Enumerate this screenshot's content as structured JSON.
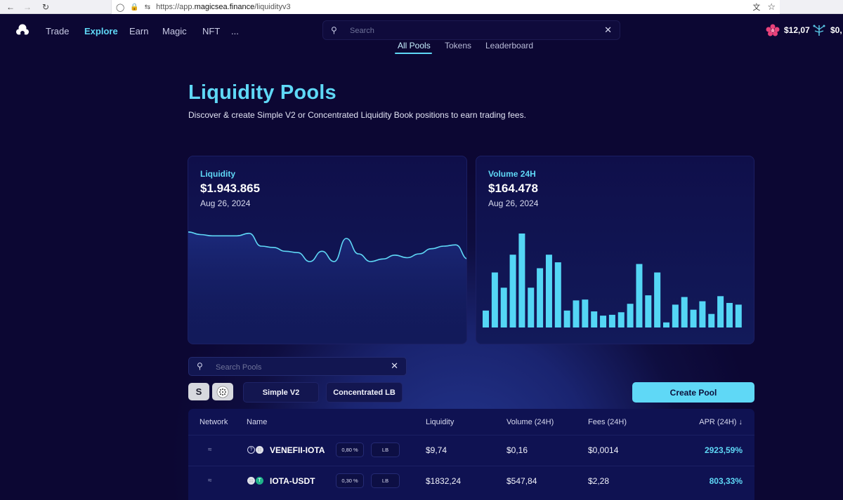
{
  "browser": {
    "url_prefix": "https://app.",
    "url_domain": "magicsea.finance",
    "url_path": "/liquidityv3"
  },
  "nav": {
    "items": [
      "Trade",
      "Explore",
      "Earn",
      "Magic",
      "NFT",
      "..."
    ],
    "active": "Explore",
    "search_placeholder": "Search"
  },
  "wallet": {
    "balance_1": "$12,07",
    "balance_2": "$0,"
  },
  "subtabs": [
    "All Pools",
    "Tokens",
    "Leaderboard"
  ],
  "header": {
    "title": "Liquidity Pools",
    "subtitle": "Discover & create Simple V2 or Concentrated Liquidity Book positions to earn trading fees."
  },
  "liquidity_card": {
    "label": "Liquidity",
    "value": "$1.943.865",
    "date": "Aug 26, 2024"
  },
  "volume_card": {
    "label": "Volume 24H",
    "value": "$164.478",
    "date": "Aug 26, 2024"
  },
  "chart_data": [
    {
      "type": "area",
      "series": [
        {
          "values": [
            1.03,
            1.01,
            1.0,
            1.0,
            1.0,
            1.02,
            0.92,
            0.91,
            0.88,
            0.87,
            0.8,
            0.88,
            0.8,
            0.98,
            0.86,
            0.8,
            0.82,
            0.85,
            0.83,
            0.86,
            0.9,
            0.92,
            0.93,
            0.82
          ]
        }
      ],
      "title": "",
      "xlabel": "",
      "ylabel": ""
    },
    {
      "type": "bar",
      "series": [
        {
          "values": [
            20,
            65,
            47,
            86,
            111,
            47,
            70,
            86,
            77,
            20,
            32,
            33,
            19,
            14,
            15,
            18,
            28,
            75,
            38,
            65,
            6,
            27,
            36,
            21,
            31,
            16,
            37,
            29,
            27
          ]
        }
      ],
      "title": "",
      "xlabel": "",
      "ylabel": ""
    }
  ],
  "pool_search": {
    "placeholder": "Search Pools"
  },
  "filters": {
    "chip_1": "S",
    "simple_v2": "Simple V2",
    "concentrated_lb": "Concentrated LB",
    "create_pool": "Create Pool"
  },
  "table": {
    "headers": {
      "network": "Network",
      "name": "Name",
      "liquidity": "Liquidity",
      "volume": "Volume (24H)",
      "fees": "Fees (24H)",
      "apr": "APR (24H) ↓"
    },
    "rows": [
      {
        "name": "VENEFII-IOTA",
        "fee": "0,80 %",
        "type": "LB",
        "liquidity": "$9,74",
        "volume": "$0,16",
        "fees": "$0,0014",
        "apr": "2923,59%"
      },
      {
        "name": "IOTA-USDT",
        "fee": "0,30 %",
        "type": "LB",
        "liquidity": "$1832,24",
        "volume": "$547,84",
        "fees": "$2,28",
        "apr": "803,33%"
      }
    ]
  },
  "colors": {
    "accent": "#5fd8f6",
    "background": "#0c0733",
    "card": "#10124d",
    "brand_flower": "#e8427a"
  }
}
